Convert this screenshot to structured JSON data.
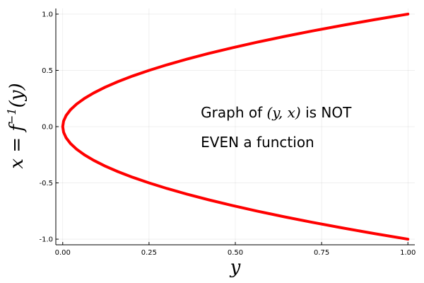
{
  "chart_data": {
    "type": "line",
    "title": "",
    "grid": true,
    "legend": "none",
    "xlim": [
      -0.02,
      1.02
    ],
    "ylim": [
      -1.05,
      1.05
    ],
    "xticks": [
      0.0,
      0.25,
      0.5,
      0.75,
      1.0
    ],
    "xtick_labels": [
      "0.00",
      "0.25",
      "0.50",
      "0.75",
      "1.00"
    ],
    "yticks": [
      -1.0,
      -0.5,
      0.0,
      0.5,
      1.0
    ],
    "ytick_labels": [
      "-1.0",
      "-0.5",
      "0.0",
      "0.5",
      "1.0"
    ],
    "xlabel": "y",
    "ylabel_parts": {
      "lhs": "x = f",
      "sup": "−1",
      "rhs": "(y)"
    },
    "series": [
      {
        "color": "#ff0000",
        "points": [
          [
            1.0,
            -1.0
          ],
          [
            0.9025,
            -0.95
          ],
          [
            0.81,
            -0.9
          ],
          [
            0.7225,
            -0.85
          ],
          [
            0.64,
            -0.8
          ],
          [
            0.5625,
            -0.75
          ],
          [
            0.49,
            -0.7
          ],
          [
            0.4225,
            -0.65
          ],
          [
            0.36,
            -0.6
          ],
          [
            0.3025,
            -0.55
          ],
          [
            0.25,
            -0.5
          ],
          [
            0.2025,
            -0.45
          ],
          [
            0.16,
            -0.4
          ],
          [
            0.1225,
            -0.35
          ],
          [
            0.09,
            -0.3
          ],
          [
            0.0625,
            -0.25
          ],
          [
            0.04,
            -0.2
          ],
          [
            0.0225,
            -0.15
          ],
          [
            0.01,
            -0.1
          ],
          [
            0.0025,
            -0.05
          ],
          [
            0.0,
            0.0
          ],
          [
            0.0025,
            0.05
          ],
          [
            0.01,
            0.1
          ],
          [
            0.0225,
            0.15
          ],
          [
            0.04,
            0.2
          ],
          [
            0.0625,
            0.25
          ],
          [
            0.09,
            0.3
          ],
          [
            0.1225,
            0.35
          ],
          [
            0.16,
            0.4
          ],
          [
            0.2025,
            0.45
          ],
          [
            0.25,
            0.5
          ],
          [
            0.3025,
            0.55
          ],
          [
            0.36,
            0.6
          ],
          [
            0.4225,
            0.65
          ],
          [
            0.49,
            0.7
          ],
          [
            0.5625,
            0.75
          ],
          [
            0.64,
            0.8
          ],
          [
            0.7225,
            0.85
          ],
          [
            0.81,
            0.9
          ],
          [
            0.9025,
            0.95
          ],
          [
            1.0,
            1.0
          ]
        ]
      }
    ],
    "annotation": {
      "line1_pre": "Graph of ",
      "line1_math": "(y, x)",
      "line1_post": " is NOT",
      "line2": "EVEN a function",
      "anchor_data": [
        0.4,
        0.02
      ]
    }
  }
}
